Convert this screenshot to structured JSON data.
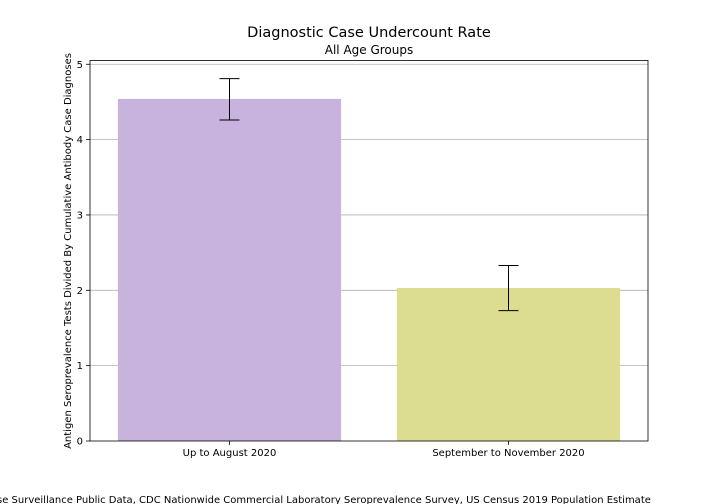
{
  "chart_data": {
    "type": "bar",
    "title": "Diagnostic Case Undercount Rate",
    "subtitle": "All Age Groups",
    "xlabel": "",
    "ylabel": "Antigen Seroprevalence Tests Divided By Cumulative Antibody Case Diagnoses",
    "categories": [
      "Up to August 2020",
      "September to November 2020"
    ],
    "values": [
      4.54,
      2.03
    ],
    "error_low": [
      4.26,
      1.73
    ],
    "error_high": [
      4.81,
      2.33
    ],
    "colors": [
      "#c8b2de",
      "#dddd91"
    ],
    "ylim": [
      0,
      5.05
    ],
    "yticks": [
      "0",
      "1",
      "2",
      "3",
      "4",
      "5"
    ],
    "grid": "horizontal",
    "source_text": "se Surveillance Public Data, CDC Nationwide Commercial Laboratory Seroprevalence Survey, US Census 2019 Population Estimate"
  }
}
